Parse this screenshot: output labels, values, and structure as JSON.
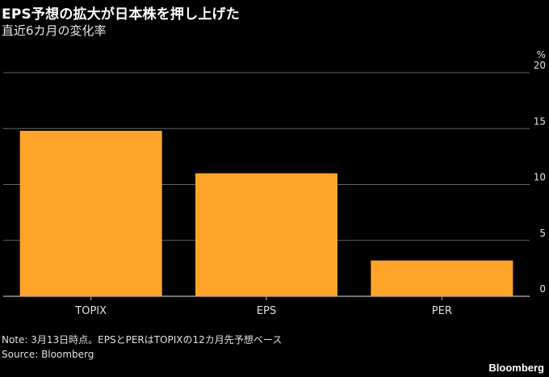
{
  "title": "EPS予想の拡大が日本株を押し上げた",
  "subtitle": "直近6カ月の変化率",
  "note": "Note: 3月13日時点。EPSとPERはTOPIXの12カ月先予想ベース",
  "source": "Source: Bloomberg",
  "brand": "Bloomberg",
  "chart_data": {
    "type": "bar",
    "title": "EPS予想の拡大が日本株を押し上げた",
    "subtitle": "直近6カ月の変化率",
    "categories": [
      "TOPIX",
      "EPS",
      "PER"
    ],
    "values": [
      14.8,
      11.0,
      3.2
    ],
    "unit_label": "%",
    "ylim": [
      0,
      20
    ],
    "yticks": [
      0,
      5,
      10,
      15,
      20
    ],
    "grid": true,
    "bar_color": "#ffa42b",
    "axis_position": "right"
  }
}
